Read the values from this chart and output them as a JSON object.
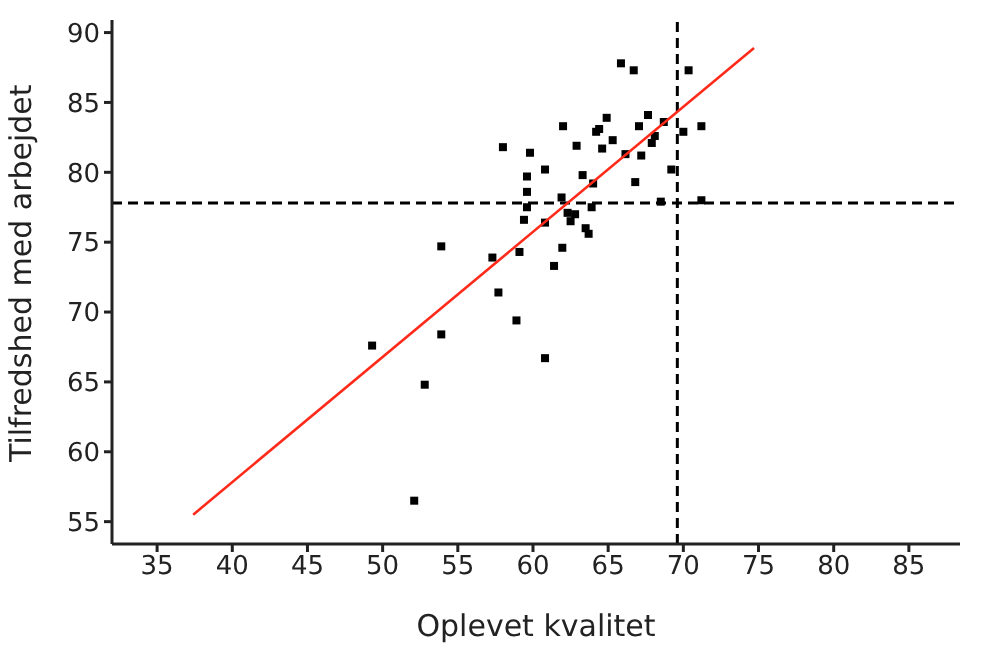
{
  "chart_data": {
    "type": "scatter",
    "xlabel": "Oplevet kvalitet",
    "ylabel": "Tilfredshed med arbejdet",
    "xlim": [
      32,
      88.4
    ],
    "ylim": [
      53.4,
      90.9
    ],
    "xticks": [
      35,
      40,
      45,
      50,
      55,
      60,
      65,
      70,
      75,
      80,
      85
    ],
    "yticks": [
      55,
      60,
      65,
      70,
      75,
      80,
      85,
      90
    ],
    "marker": "square",
    "grid": false,
    "series": [
      {
        "color": "#000000",
        "x": [
          65.85,
          66.7,
          70.35,
          71.2,
          70.0,
          67.65,
          64.9,
          64.4,
          64.2,
          62.0,
          67.05,
          68.7,
          68.1,
          67.9,
          65.3,
          64.6,
          62.9,
          58.0,
          59.8,
          66.15,
          67.2,
          60.8,
          69.2,
          59.6,
          63.3,
          64.0,
          66.8,
          59.6,
          61.9,
          68.5,
          71.2,
          59.6,
          63.9,
          62.3,
          62.8,
          59.4,
          60.8,
          62.5,
          63.5,
          63.7,
          53.9,
          61.95,
          57.3,
          59.1,
          61.4,
          57.7,
          58.9,
          53.9,
          49.3,
          52.8,
          60.8,
          52.1
        ],
        "values": [
          87.8,
          87.3,
          87.3,
          83.3,
          82.9,
          84.1,
          83.9,
          83.1,
          82.9,
          83.3,
          83.3,
          83.6,
          82.6,
          82.1,
          82.3,
          81.7,
          81.9,
          81.8,
          81.4,
          81.3,
          81.2,
          80.2,
          80.2,
          79.7,
          79.8,
          79.2,
          79.3,
          78.6,
          78.2,
          77.9,
          78.0,
          77.5,
          77.5,
          77.1,
          77.0,
          76.6,
          76.4,
          76.5,
          76.0,
          75.6,
          74.7,
          74.6,
          73.9,
          74.3,
          73.3,
          71.4,
          69.4,
          68.4,
          67.6,
          64.8,
          66.7,
          56.5
        ]
      },
      {
        "type": "line",
        "color": "#ff2a1a",
        "x": [
          37.4,
          74.7
        ],
        "values": [
          55.5,
          88.9
        ],
        "marker": "none"
      }
    ],
    "ref_lines": [
      {
        "axis": "x",
        "value": 69.6,
        "color": "#000000",
        "line_style": "dashed"
      },
      {
        "axis": "y",
        "value": 77.8,
        "color": "#000000",
        "line_style": "dashed"
      }
    ]
  }
}
